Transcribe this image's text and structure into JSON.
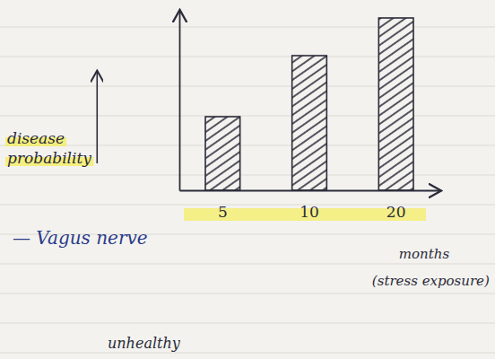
{
  "chart_data": {
    "type": "bar",
    "y_label": "disease probability",
    "x_label": "months (stress exposure)",
    "categories": [
      "5",
      "10",
      "20"
    ],
    "values": [
      41,
      75,
      96
    ],
    "color": "#2b2b3a",
    "ylim": [
      0,
      100
    ],
    "yticks": [],
    "tick_labels": "x",
    "annotations": [
      "— Vagus nerve",
      "unhealthy"
    ]
  }
}
